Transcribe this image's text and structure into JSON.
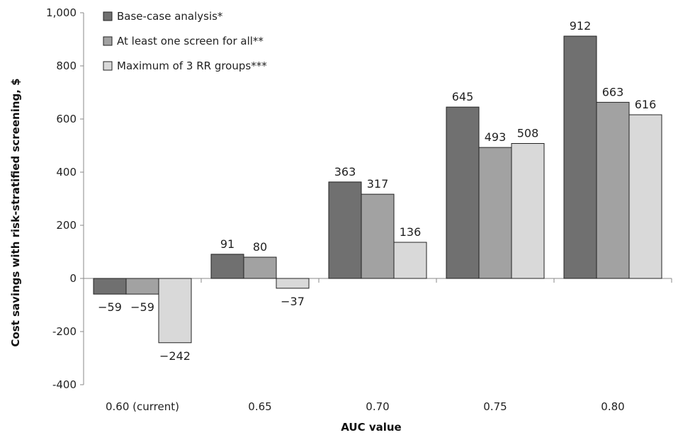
{
  "chart_data": {
    "type": "bar",
    "title": "",
    "xlabel": "AUC value",
    "ylabel": "Cost savings with risk-stratified screening, $",
    "ylim": [
      -400,
      1000
    ],
    "yticks": [
      "-400",
      "-200",
      "0",
      "200",
      "400",
      "600",
      "800",
      "1,000"
    ],
    "grid": false,
    "legend_position": "top-left",
    "categories": [
      "0.60 (current)",
      "0.65",
      "0.70",
      "0.75",
      "0.80"
    ],
    "series": [
      {
        "name": "Base-case analysis*",
        "color": "#707070",
        "values": [
          -59,
          91,
          363,
          645,
          912
        ],
        "labels": [
          "−59",
          "91",
          "363",
          "645",
          "912"
        ]
      },
      {
        "name": "At least one screen for all**",
        "color": "#a2a2a2",
        "values": [
          -59,
          80,
          317,
          493,
          663
        ],
        "labels": [
          "−59",
          "80",
          "317",
          "493",
          "663"
        ]
      },
      {
        "name": "Maximum of 3 RR groups***",
        "color": "#d9d9d9",
        "values": [
          -242,
          -37,
          136,
          508,
          616
        ],
        "labels": [
          "−242",
          "−37",
          "136",
          "508",
          "616"
        ]
      }
    ]
  }
}
